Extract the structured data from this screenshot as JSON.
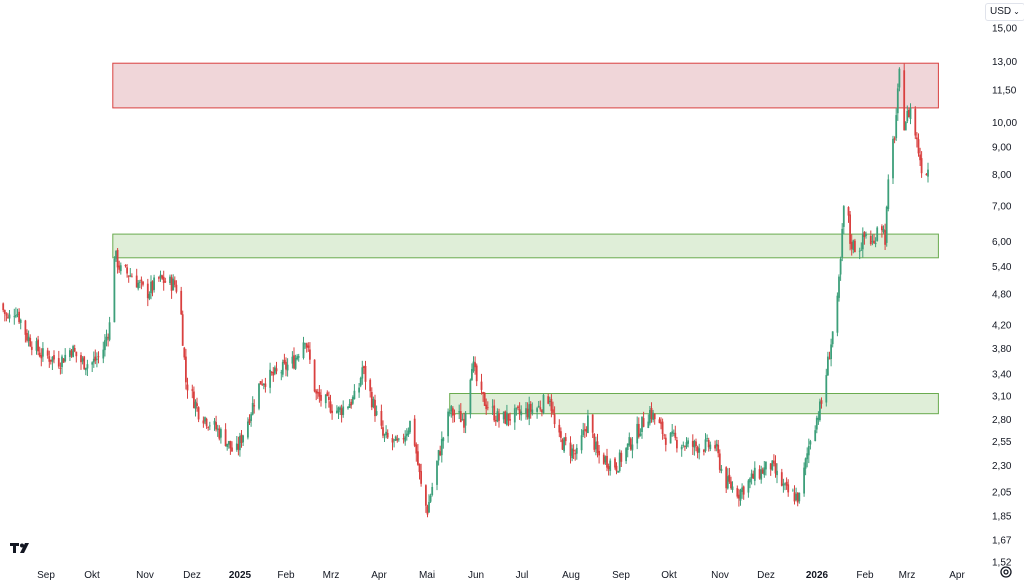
{
  "currency": {
    "label": "USD",
    "chevron": "chevron-down-icon"
  },
  "logo": "tradingview-logo",
  "settings_icon": "gear-icon",
  "chart_data": {
    "type": "candlestick",
    "scale": "log",
    "y_ticks": [
      "15,00",
      "13,00",
      "11,50",
      "10,00",
      "9,00",
      "8,00",
      "7,00",
      "6,00",
      "5,40",
      "4,80",
      "4,20",
      "3,80",
      "3,40",
      "3,10",
      "2,80",
      "2,55",
      "2,30",
      "2,05",
      "1,85",
      "1,67",
      "1,52"
    ],
    "x_ticks": [
      {
        "label": "Sep"
      },
      {
        "label": "Okt"
      },
      {
        "label": "Nov"
      },
      {
        "label": "Dez"
      },
      {
        "label": "2025",
        "bold": true
      },
      {
        "label": "Feb"
      },
      {
        "label": "Mrz"
      },
      {
        "label": "Apr"
      },
      {
        "label": "Mai"
      },
      {
        "label": "Jun"
      },
      {
        "label": "Jul"
      },
      {
        "label": "Aug"
      },
      {
        "label": "Sep"
      },
      {
        "label": "Okt"
      },
      {
        "label": "Nov"
      },
      {
        "label": "Dez"
      },
      {
        "label": "2026",
        "bold": true
      },
      {
        "label": "Feb"
      },
      {
        "label": "Mrz"
      },
      {
        "label": "Apr"
      }
    ],
    "zones": [
      {
        "type": "resistance",
        "from": "2024-10-27",
        "to": "2026-03-23",
        "low": 10.65,
        "high": 12.9,
        "fill": "#f0d6d9",
        "stroke": "#d9403f"
      },
      {
        "type": "support",
        "from": "2024-10-27",
        "to": "2026-03-23",
        "low": 5.6,
        "high": 6.2,
        "fill": "#dfeed8",
        "stroke": "#6aab4f"
      },
      {
        "type": "support",
        "from": "2025-05-27",
        "to": "2026-03-23",
        "low": 2.87,
        "high": 3.13,
        "fill": "#dfeed8",
        "stroke": "#6aab4f"
      }
    ],
    "colors": {
      "up": "#3d9f7a",
      "down": "#d9403f"
    },
    "path": [
      [
        "2024-08-17",
        4.6
      ],
      [
        "2024-08-22",
        4.3
      ],
      [
        "2024-08-27",
        4.5
      ],
      [
        "2024-09-03",
        4.0
      ],
      [
        "2024-09-12",
        3.7
      ],
      [
        "2024-09-24",
        3.6
      ],
      [
        "2024-10-01",
        3.8
      ],
      [
        "2024-10-06",
        3.6
      ],
      [
        "2024-10-13",
        3.55
      ],
      [
        "2024-10-20",
        3.7
      ],
      [
        "2024-10-25",
        4.2
      ],
      [
        "2024-10-27",
        5.8
      ],
      [
        "2024-11-01",
        5.3
      ],
      [
        "2024-11-08",
        5.2
      ],
      [
        "2024-11-17",
        4.8
      ],
      [
        "2024-11-25",
        5.1
      ],
      [
        "2024-12-05",
        5.0
      ],
      [
        "2024-12-08",
        4.8
      ],
      [
        "2024-12-12",
        3.3
      ],
      [
        "2024-12-20",
        2.9
      ],
      [
        "2025-01-05",
        2.6
      ],
      [
        "2025-01-12",
        2.4
      ],
      [
        "2025-01-20",
        2.8
      ],
      [
        "2025-01-28",
        3.3
      ],
      [
        "2025-02-07",
        3.4
      ],
      [
        "2025-02-18",
        3.6
      ],
      [
        "2025-02-25",
        4.0
      ],
      [
        "2025-03-04",
        3.1
      ],
      [
        "2025-03-18",
        2.9
      ],
      [
        "2025-03-30",
        3.1
      ],
      [
        "2025-04-02",
        3.5
      ],
      [
        "2025-04-15",
        2.6
      ],
      [
        "2025-04-25",
        2.5
      ],
      [
        "2025-05-03",
        2.8
      ],
      [
        "2025-05-10",
        2.0
      ],
      [
        "2025-05-13",
        1.9
      ],
      [
        "2025-05-20",
        2.4
      ],
      [
        "2025-05-27",
        2.9
      ],
      [
        "2025-06-05",
        2.8
      ],
      [
        "2025-06-10",
        3.6
      ],
      [
        "2025-06-15",
        3.1
      ],
      [
        "2025-06-27",
        2.8
      ],
      [
        "2025-07-08",
        2.85
      ],
      [
        "2025-07-22",
        2.95
      ],
      [
        "2025-07-29",
        3.1
      ],
      [
        "2025-08-02",
        2.6
      ],
      [
        "2025-08-15",
        2.4
      ],
      [
        "2025-08-22",
        2.8
      ],
      [
        "2025-08-28",
        2.4
      ],
      [
        "2025-09-09",
        2.3
      ],
      [
        "2025-09-20",
        2.6
      ],
      [
        "2025-09-30",
        2.9
      ],
      [
        "2025-10-10",
        2.6
      ],
      [
        "2025-10-25",
        2.5
      ],
      [
        "2025-11-10",
        2.5
      ],
      [
        "2025-11-16",
        2.15
      ],
      [
        "2025-11-25",
        2.05
      ],
      [
        "2025-12-05",
        2.2
      ],
      [
        "2025-12-15",
        2.3
      ],
      [
        "2025-12-25",
        2.05
      ],
      [
        "2026-01-02",
        2.0
      ],
      [
        "2026-01-09",
        2.6
      ],
      [
        "2026-01-16",
        3.0
      ],
      [
        "2026-01-22",
        3.9
      ],
      [
        "2026-01-26",
        4.6
      ],
      [
        "2026-01-28",
        5.5
      ],
      [
        "2026-01-31",
        7.8
      ],
      [
        "2026-02-03",
        6.0
      ],
      [
        "2026-02-08",
        5.8
      ],
      [
        "2026-02-13",
        6.2
      ],
      [
        "2026-02-18",
        5.9
      ],
      [
        "2026-02-21",
        6.8
      ],
      [
        "2026-02-25",
        6.1
      ],
      [
        "2026-02-28",
        8.5
      ],
      [
        "2026-03-03",
        9.5
      ],
      [
        "2026-03-06",
        12.2
      ],
      [
        "2026-03-09",
        10.0
      ],
      [
        "2026-03-13",
        10.6
      ],
      [
        "2026-03-17",
        9.2
      ],
      [
        "2026-03-21",
        8.0
      ],
      [
        "2026-03-24",
        8.2
      ]
    ]
  }
}
